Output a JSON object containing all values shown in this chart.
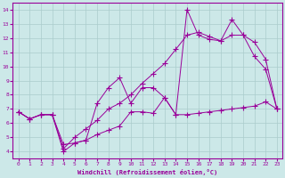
{
  "xlabel": "Windchill (Refroidissement éolien,°C)",
  "bg_color": "#cce8e8",
  "line_color": "#990099",
  "grid_color": "#aacccc",
  "xlim": [
    -0.5,
    23.5
  ],
  "ylim": [
    3.5,
    14.5
  ],
  "xticks": [
    0,
    1,
    2,
    3,
    4,
    5,
    6,
    7,
    8,
    9,
    10,
    11,
    12,
    13,
    14,
    15,
    16,
    17,
    18,
    19,
    20,
    21,
    22,
    23
  ],
  "yticks": [
    4,
    5,
    6,
    7,
    8,
    9,
    10,
    11,
    12,
    13,
    14
  ],
  "line1_x": [
    0,
    1,
    2,
    3,
    4,
    5,
    6,
    7,
    8,
    9,
    10,
    11,
    12,
    13,
    14,
    15,
    16,
    17,
    18,
    19,
    20,
    21,
    22,
    23
  ],
  "line1_y": [
    6.8,
    6.3,
    6.6,
    6.6,
    4.5,
    4.6,
    4.8,
    5.2,
    5.5,
    5.8,
    6.8,
    6.8,
    6.7,
    7.8,
    6.6,
    6.6,
    6.7,
    6.8,
    6.9,
    7.0,
    7.1,
    7.2,
    7.5,
    7.0
  ],
  "line2_x": [
    0,
    1,
    2,
    3,
    4,
    5,
    6,
    7,
    8,
    9,
    10,
    11,
    12,
    13,
    14,
    15,
    16,
    17,
    18,
    19,
    20,
    21,
    22,
    23
  ],
  "line2_y": [
    6.8,
    6.3,
    6.6,
    6.6,
    4.0,
    4.6,
    4.8,
    7.4,
    8.5,
    9.2,
    7.4,
    8.5,
    8.5,
    7.8,
    6.6,
    14.0,
    12.2,
    11.9,
    11.8,
    12.2,
    12.2,
    10.7,
    9.8,
    7.0
  ],
  "line3_x": [
    0,
    1,
    2,
    3,
    4,
    5,
    6,
    7,
    8,
    9,
    10,
    11,
    12,
    13,
    14,
    15,
    16,
    17,
    18,
    19,
    20,
    21,
    22,
    23
  ],
  "line3_y": [
    6.8,
    6.3,
    6.6,
    6.6,
    4.2,
    5.0,
    5.6,
    6.2,
    7.0,
    7.4,
    8.0,
    8.8,
    9.5,
    10.2,
    11.2,
    12.2,
    12.4,
    12.1,
    11.8,
    13.3,
    12.2,
    11.7,
    10.5,
    7.0
  ]
}
